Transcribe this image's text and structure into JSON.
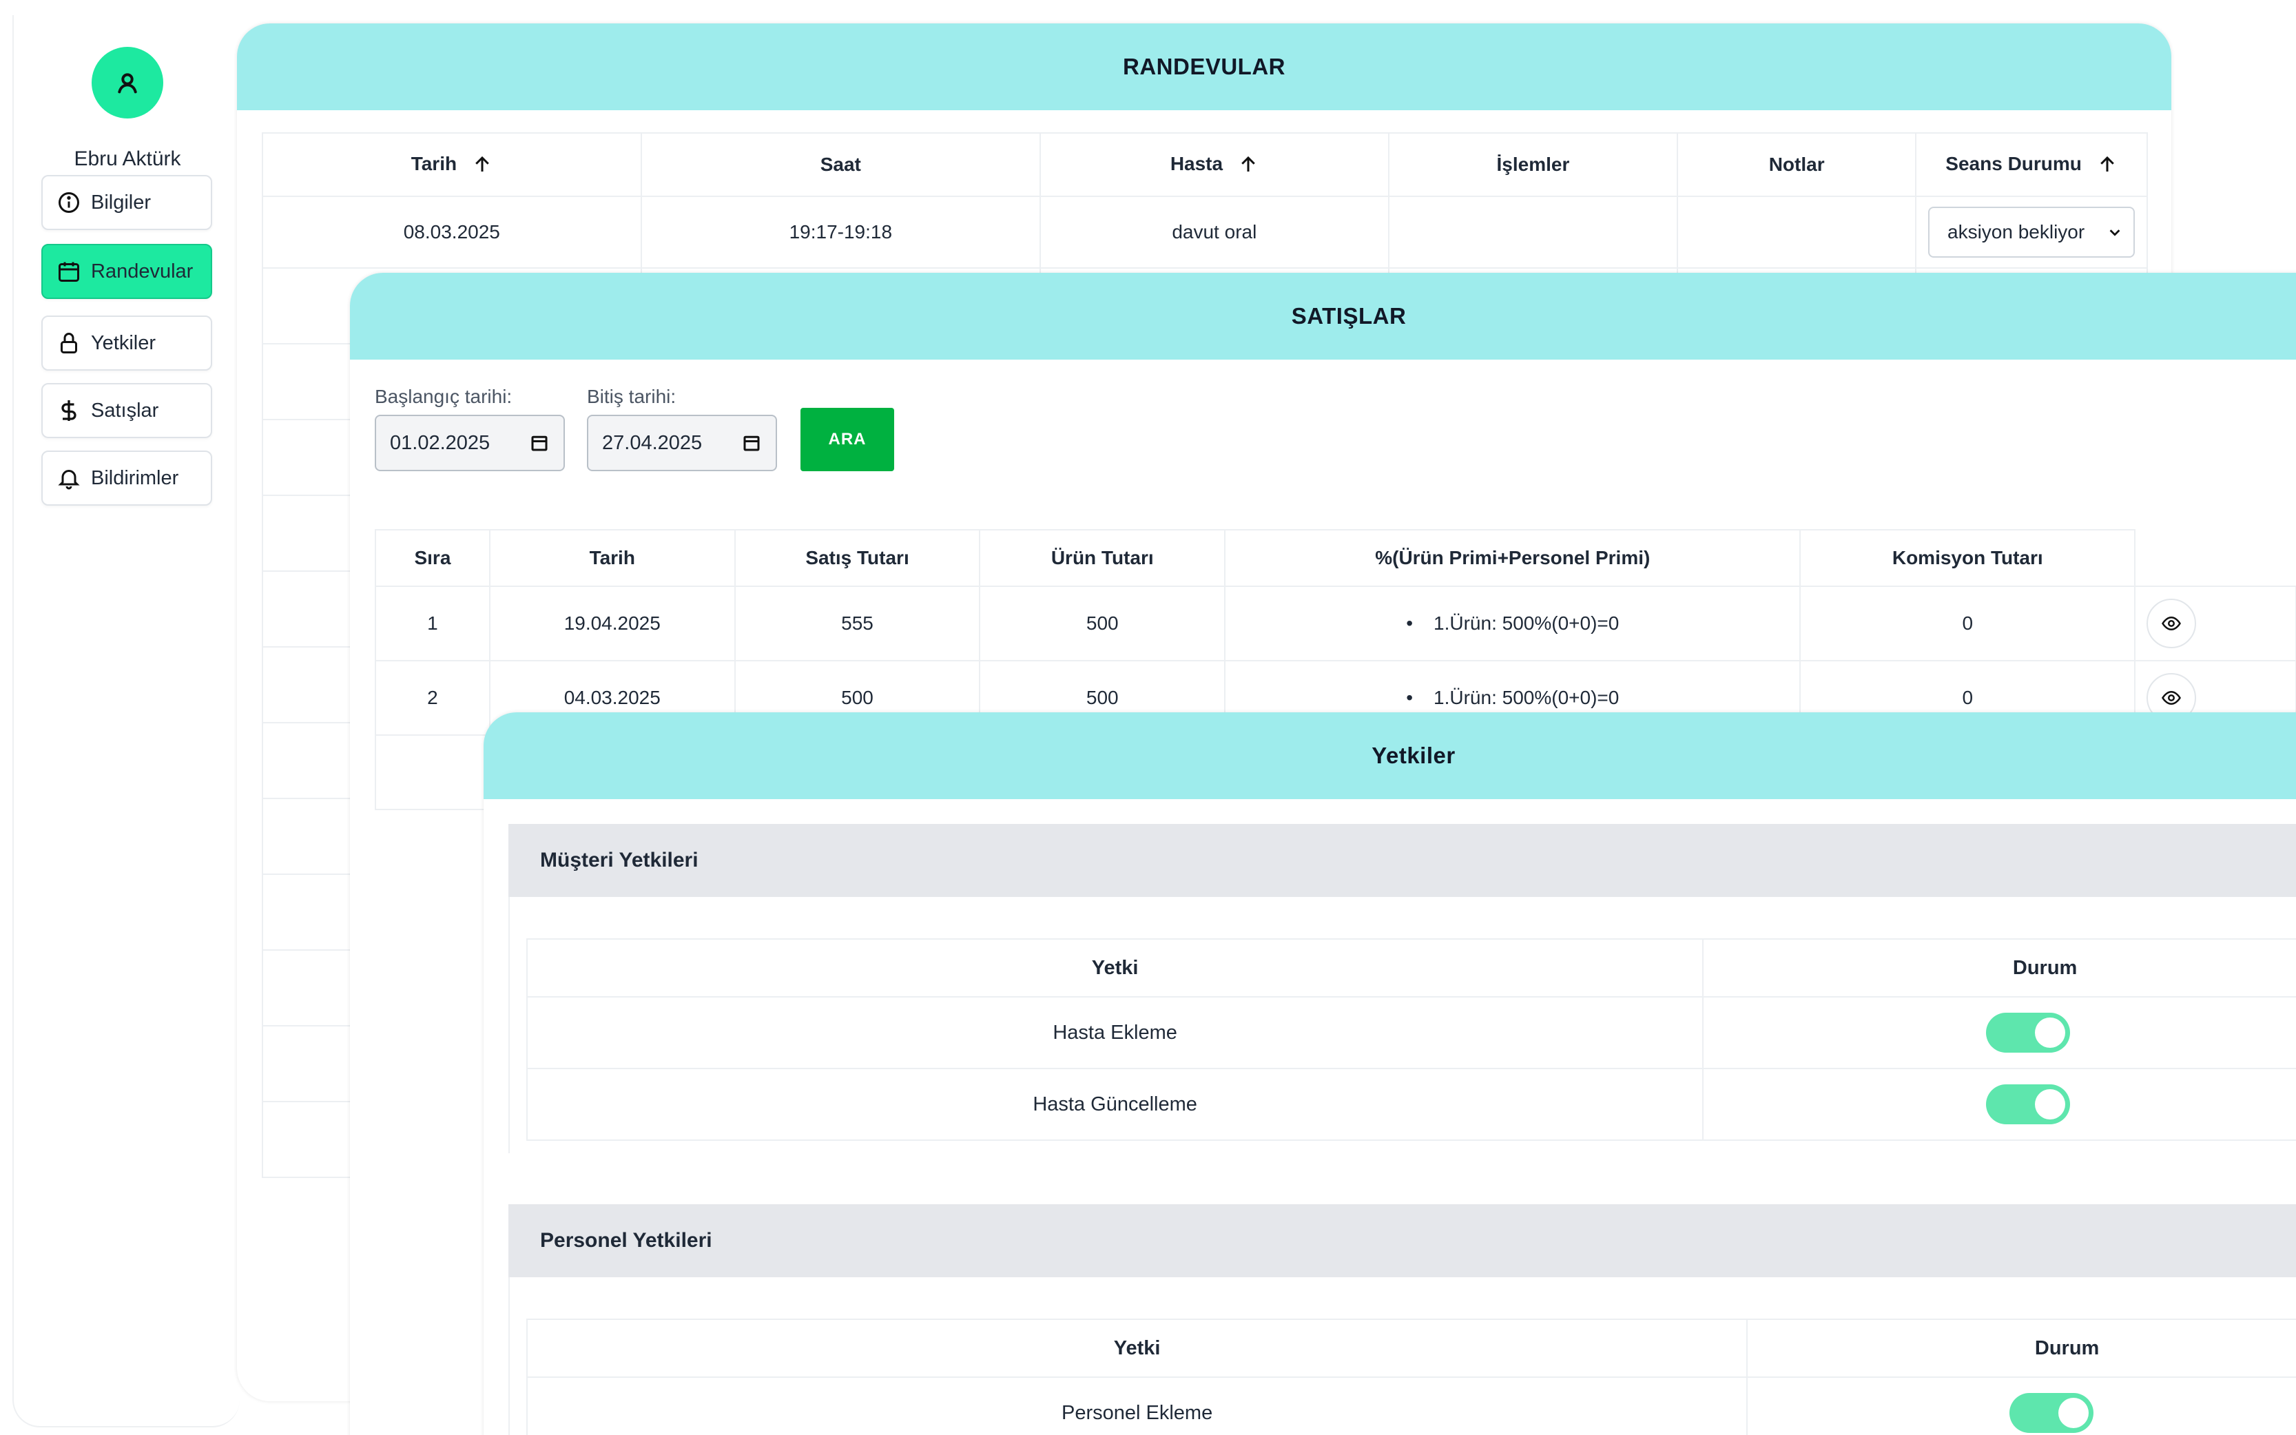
{
  "sidebar": {
    "user_name": "Ebru Aktürk",
    "items": [
      {
        "label": "Bilgiler",
        "icon": "info-icon",
        "active": false
      },
      {
        "label": "Randevular",
        "icon": "calendar-icon",
        "active": true
      },
      {
        "label": "Yetkiler",
        "icon": "lock-icon",
        "active": false
      },
      {
        "label": "Satışlar",
        "icon": "dollar-icon",
        "active": false
      },
      {
        "label": "Bildirimler",
        "icon": "bell-icon",
        "active": false
      }
    ]
  },
  "randevular": {
    "title": "RANDEVULAR",
    "columns": [
      "Tarih",
      "Saat",
      "Hasta",
      "İşlemler",
      "Notlar",
      "Seans Durumu"
    ],
    "rows": [
      {
        "tarih": "08.03.2025",
        "saat": "19:17-19:18",
        "hasta": "davut oral",
        "islemler": "",
        "notlar": "",
        "seans_durumu": "aksiyon bekliyor"
      }
    ]
  },
  "satislar": {
    "title": "SATIŞLAR",
    "start_label": "Başlangıç tarihi:",
    "start_value": "01.02.2025",
    "end_label": "Bitiş tarihi:",
    "end_value": "27.04.2025",
    "search_button": "ARA",
    "columns": [
      "Sıra",
      "Tarih",
      "Satış Tutarı",
      "Ürün Tutarı",
      "%(Ürün Primi+Personel Primi)",
      "Komisyon Tutarı"
    ],
    "rows": [
      {
        "sira": "1",
        "tarih": "19.04.2025",
        "satis": "555",
        "urun": "500",
        "prim": "1.Ürün: 500%(0+0)=0",
        "komisyon": "0"
      },
      {
        "sira": "2",
        "tarih": "04.03.2025",
        "satis": "500",
        "urun": "500",
        "prim": "1.Ürün: 500%(0+0)=0",
        "komisyon": "0"
      }
    ]
  },
  "yetkiler": {
    "title": "Yetkiler",
    "musteri": {
      "title": "Müşteri Yetkileri",
      "col_yetki": "Yetki",
      "col_durum": "Durum",
      "rows": [
        {
          "label": "Hasta Ekleme",
          "enabled": true
        },
        {
          "label": "Hasta Güncelleme",
          "enabled": true
        }
      ]
    },
    "personel": {
      "title": "Personel Yetkileri",
      "col_yetki": "Yetki",
      "col_durum": "Durum",
      "rows": [
        {
          "label": "Personel Ekleme",
          "enabled": true
        }
      ]
    }
  },
  "colors": {
    "accent": "#1de9a0",
    "header_bg": "#9eecec",
    "search_button": "#00b140",
    "toggle_on": "#5ee6ad"
  }
}
